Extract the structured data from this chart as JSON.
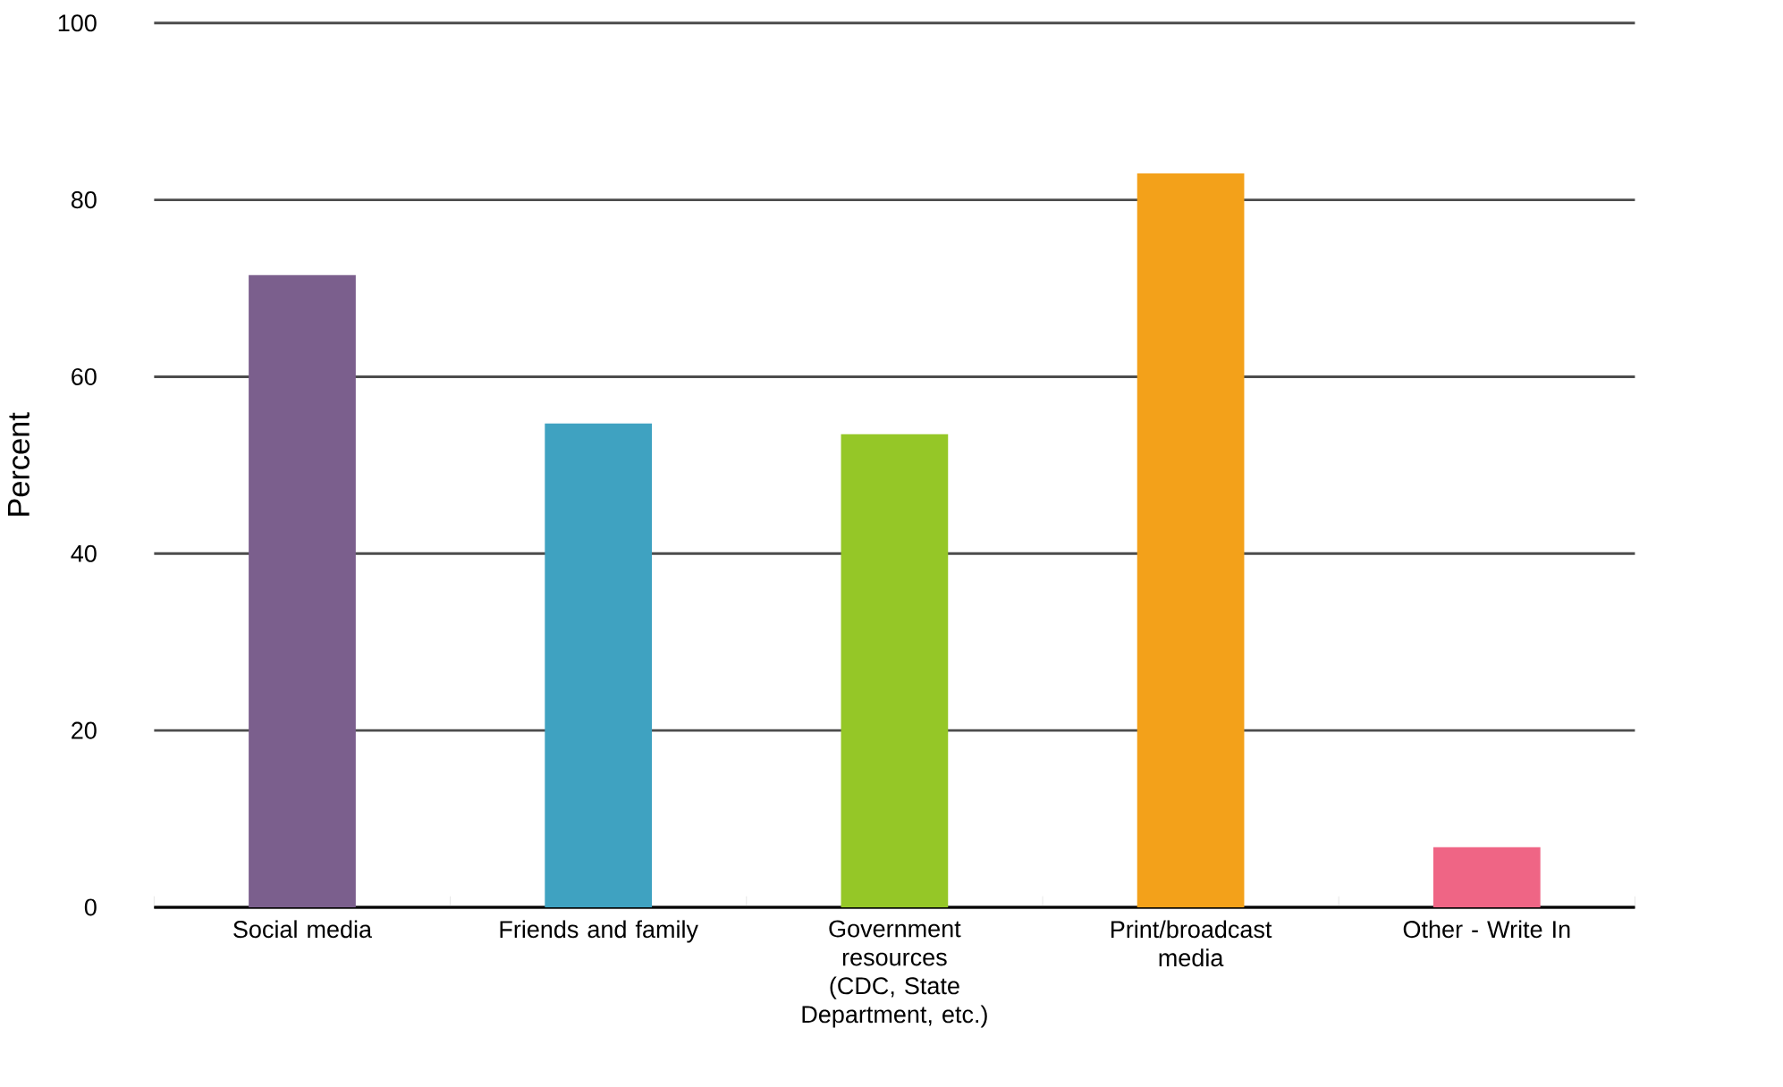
{
  "chart_data": {
    "type": "bar",
    "ylabel": "Percent",
    "categories": [
      "Social media",
      "Friends and family",
      "Government resources (CDC, State Department, etc.)",
      "Print/broadcast media",
      "Other - Write In"
    ],
    "values": [
      71.5,
      54.7,
      53.5,
      83,
      6.8
    ],
    "colors": [
      "#7b5f8d",
      "#3fa2c1",
      "#95c727",
      "#f3a11a",
      "#ef6585"
    ],
    "ylim": [
      0,
      100
    ],
    "yticks": [
      0,
      20,
      40,
      60,
      80,
      100
    ],
    "grid": "y"
  }
}
